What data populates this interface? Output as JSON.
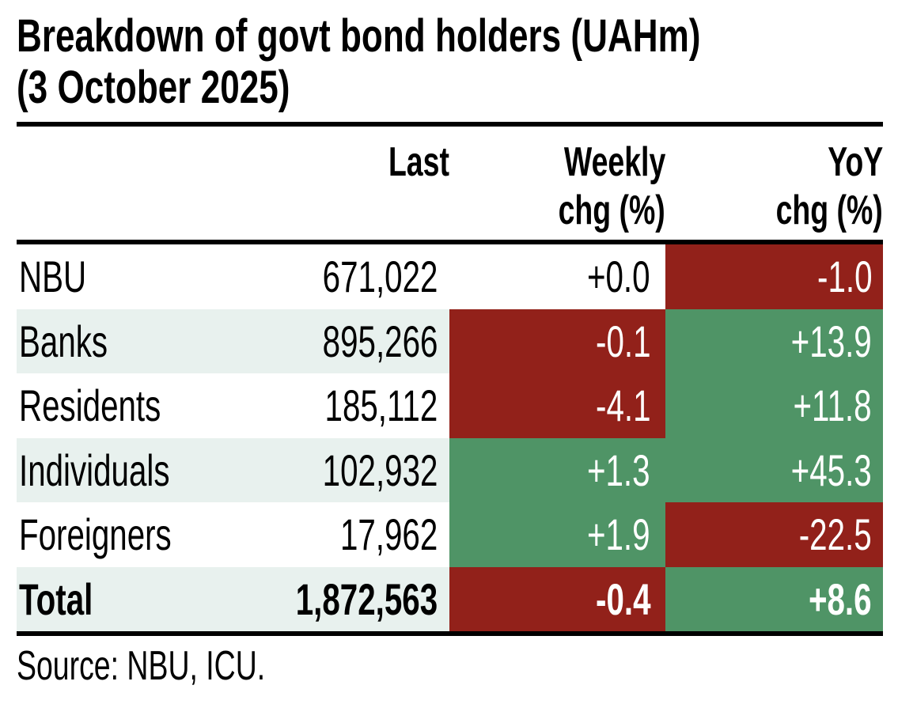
{
  "colors": {
    "red": "#92211a",
    "green": "#4f9466",
    "stripe": "#e8f1ee",
    "line": "#000000",
    "cell_text_light": "#ffffff",
    "text": "#000000"
  },
  "title": {
    "line1": "Breakdown of govt bond holders (UAHm)",
    "line2": "(3 October 2025)"
  },
  "header": {
    "last": "Last",
    "weekly_line1": "Weekly",
    "weekly_line2": "chg (%)",
    "yoy_line1": "YoY",
    "yoy_line2": "chg (%)"
  },
  "rows": [
    {
      "label": "NBU",
      "last": "671,022",
      "weekly": "+0.0",
      "yoy": "-1.0",
      "row_class": "plain",
      "weekly_class": "neutral",
      "yoy_class": "negative"
    },
    {
      "label": "Banks",
      "last": "895,266",
      "weekly": "-0.1",
      "yoy": "+13.9",
      "row_class": "striped",
      "weekly_class": "negative",
      "yoy_class": "positive"
    },
    {
      "label": "Residents",
      "last": "185,112",
      "weekly": "-4.1",
      "yoy": "+11.8",
      "row_class": "plain",
      "weekly_class": "negative",
      "yoy_class": "positive"
    },
    {
      "label": "Individuals",
      "last": "102,932",
      "weekly": "+1.3",
      "yoy": "+45.3",
      "row_class": "striped",
      "weekly_class": "positive",
      "yoy_class": "positive"
    },
    {
      "label": "Foreigners",
      "last": "17,962",
      "weekly": "+1.9",
      "yoy": "-22.5",
      "row_class": "plain",
      "weekly_class": "positive",
      "yoy_class": "negative"
    },
    {
      "label": "Total",
      "last": "1,872,563",
      "weekly": "-0.4",
      "yoy": "+8.6",
      "row_class": "striped emphasis",
      "weekly_class": "negative",
      "yoy_class": "positive"
    }
  ],
  "source": "Source: NBU, ICU.",
  "chart_data": {
    "type": "table",
    "title": "Breakdown of govt bond holders (UAHm) (3 October 2025)",
    "columns": [
      "Holder",
      "Last",
      "Weekly chg (%)",
      "YoY chg (%)"
    ],
    "rows": [
      [
        "NBU",
        671022,
        0.0,
        -1.0
      ],
      [
        "Banks",
        895266,
        -0.1,
        13.9
      ],
      [
        "Residents",
        185112,
        -4.1,
        11.8
      ],
      [
        "Individuals",
        102932,
        1.3,
        45.3
      ],
      [
        "Foreigners",
        17962,
        1.9,
        -22.5
      ],
      [
        "Total",
        1872563,
        -0.4,
        8.6
      ]
    ],
    "cell_color_rule": "negative change = red background, positive change = green background, 0.0 weekly for NBU = no fill",
    "source": "Source: NBU, ICU."
  }
}
